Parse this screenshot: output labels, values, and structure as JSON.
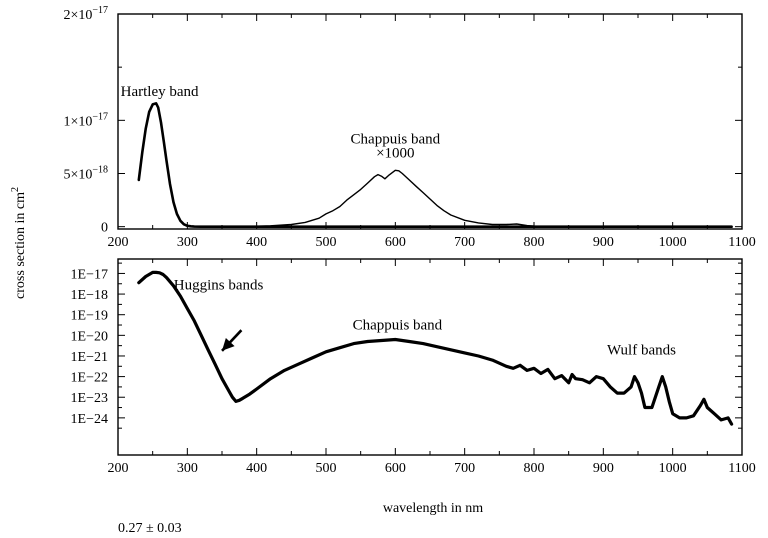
{
  "chart_data": [
    {
      "type": "line",
      "panel": "top",
      "yscale": "linear",
      "xlim": [
        200,
        1100
      ],
      "ylim": [
        -2.2e-19,
        2e-17
      ],
      "xticks": [
        200,
        300,
        400,
        500,
        600,
        700,
        800,
        900,
        1000,
        1100
      ],
      "xtick_labels": [
        "200",
        "300",
        "400",
        "500",
        "600",
        "700",
        "800",
        "900",
        "1000",
        "1100"
      ],
      "yticks": [
        0,
        5e-18,
        1e-17,
        2e-17
      ],
      "ytick_labels": [
        {
          "mantissa": "0",
          "exp": ""
        },
        {
          "mantissa": "5×10",
          "exp": "−18"
        },
        {
          "mantissa": "1×10",
          "exp": "−17"
        },
        {
          "mantissa": "2×10",
          "exp": "−17"
        }
      ],
      "series": [
        {
          "values_note": "Hartley band absorption cross section",
          "x": [
            230,
            235,
            240,
            245,
            250,
            255,
            258,
            262,
            266,
            270,
            275,
            280,
            285,
            290,
            295,
            300,
            305,
            310,
            320,
            400,
            600,
            800,
            1000,
            1085
          ],
          "y": [
            4.4e-18,
            7e-18,
            9.2e-18,
            1.08e-17,
            1.15e-17,
            1.16e-17,
            1.12e-17,
            9.8e-18,
            8e-18,
            6.2e-18,
            4e-18,
            2.3e-18,
            1.2e-18,
            5.5e-19,
            2.2e-19,
            8e-20,
            3e-20,
            1e-20,
            0,
            0,
            0,
            0,
            0,
            0
          ]
        },
        {
          "values_note": "Chappuis band (scaled x1000)",
          "x": [
            380,
            420,
            450,
            470,
            480,
            490,
            500,
            510,
            520,
            530,
            540,
            550,
            560,
            570,
            575,
            580,
            585,
            590,
            600,
            605,
            610,
            620,
            630,
            640,
            650,
            660,
            670,
            680,
            700,
            720,
            740,
            760,
            775,
            790,
            800,
            850,
            900,
            950,
            1000,
            1085
          ],
          "y": [
            1e-20,
            8e-20,
            2e-19,
            4e-19,
            6e-19,
            8e-19,
            1.2e-18,
            1.5e-18,
            1.9e-18,
            2.5e-18,
            3e-18,
            3.5e-18,
            4.1e-18,
            4.7e-18,
            4.9e-18,
            4.75e-18,
            4.5e-18,
            4.8e-18,
            5.3e-18,
            5.25e-18,
            5e-18,
            4.4e-18,
            3.8e-18,
            3.2e-18,
            2.6e-18,
            2e-18,
            1.5e-18,
            1.1e-18,
            6e-19,
            3.5e-19,
            2e-19,
            2e-19,
            2.5e-19,
            1e-19,
            5e-20,
            3e-20,
            2e-20,
            1e-20,
            5e-21,
            0
          ]
        }
      ],
      "annotations": [
        {
          "text": "Hartley band",
          "x": 260,
          "y": 1.23e-17
        },
        {
          "text": "Chappuis band",
          "x": 600,
          "y": 7.8e-18
        },
        {
          "text": "×1000",
          "x": 600,
          "y": 6.5e-18
        }
      ]
    },
    {
      "type": "line",
      "panel": "bottom",
      "yscale": "log",
      "xlim": [
        200,
        1100
      ],
      "ylim": [
        -25.8,
        -16.3
      ],
      "xticks": [
        200,
        300,
        400,
        500,
        600,
        700,
        800,
        900,
        1000,
        1100
      ],
      "xtick_labels": [
        "200",
        "300",
        "400",
        "500",
        "600",
        "700",
        "800",
        "900",
        "1000",
        "1100"
      ],
      "yticks": [
        -17,
        -18,
        -19,
        -20,
        -21,
        -22,
        -23,
        -24
      ],
      "ytick_labels": [
        "1E−17",
        "1E−18",
        "1E−19",
        "1E−20",
        "1E−21",
        "1E−22",
        "1E−23",
        "1E−24"
      ],
      "series": [
        {
          "values_note": "log10 of cross section, 230-1085 nm",
          "x": [
            230,
            240,
            250,
            255,
            260,
            265,
            270,
            280,
            290,
            300,
            310,
            320,
            330,
            340,
            350,
            360,
            365,
            370,
            375,
            380,
            390,
            400,
            420,
            440,
            460,
            480,
            500,
            520,
            540,
            560,
            580,
            600,
            620,
            640,
            660,
            680,
            700,
            720,
            740,
            760,
            770,
            780,
            790,
            800,
            810,
            820,
            830,
            840,
            850,
            855,
            860,
            870,
            880,
            890,
            900,
            910,
            920,
            930,
            940,
            945,
            950,
            955,
            960,
            970,
            980,
            985,
            990,
            995,
            1000,
            1010,
            1020,
            1030,
            1040,
            1045,
            1050,
            1060,
            1070,
            1080,
            1085
          ],
          "y": [
            -17.45,
            -17.15,
            -16.95,
            -16.95,
            -16.97,
            -17.05,
            -17.2,
            -17.6,
            -18.1,
            -18.7,
            -19.3,
            -20.0,
            -20.7,
            -21.4,
            -22.1,
            -22.7,
            -23.0,
            -23.2,
            -23.15,
            -23.05,
            -22.85,
            -22.6,
            -22.1,
            -21.7,
            -21.4,
            -21.1,
            -20.8,
            -20.6,
            -20.4,
            -20.3,
            -20.25,
            -20.2,
            -20.3,
            -20.4,
            -20.55,
            -20.7,
            -20.85,
            -21.0,
            -21.2,
            -21.5,
            -21.6,
            -21.45,
            -21.7,
            -21.6,
            -21.85,
            -21.65,
            -22.1,
            -21.95,
            -22.3,
            -21.9,
            -22.1,
            -22.15,
            -22.3,
            -22.0,
            -22.1,
            -22.5,
            -22.8,
            -22.8,
            -22.5,
            -22.0,
            -22.3,
            -22.8,
            -23.5,
            -23.5,
            -22.5,
            -22.0,
            -22.5,
            -23.2,
            -23.8,
            -24.0,
            -24.0,
            -23.9,
            -23.4,
            -23.1,
            -23.5,
            -23.8,
            -24.1,
            -24.0,
            -24.3
          ]
        }
      ],
      "annotations": [
        {
          "text": "Huggins bands",
          "x": 345,
          "y": -17.78
        },
        {
          "text": "Chappuis band",
          "x": 603,
          "y": -19.72
        },
        {
          "text": "Wulf bands",
          "x": 955,
          "y": -20.93
        }
      ],
      "arrow": {
        "from": [
          378,
          -19.75
        ],
        "to": [
          350,
          -20.75
        ]
      }
    }
  ],
  "shared": {
    "ylabel": "cross section in cm²",
    "ylabel_main": "cross section in cm",
    "ylabel_sup": "2",
    "xlabel": "wavelength in nm"
  },
  "footer": {
    "text": "0.27 ± 0.03"
  }
}
